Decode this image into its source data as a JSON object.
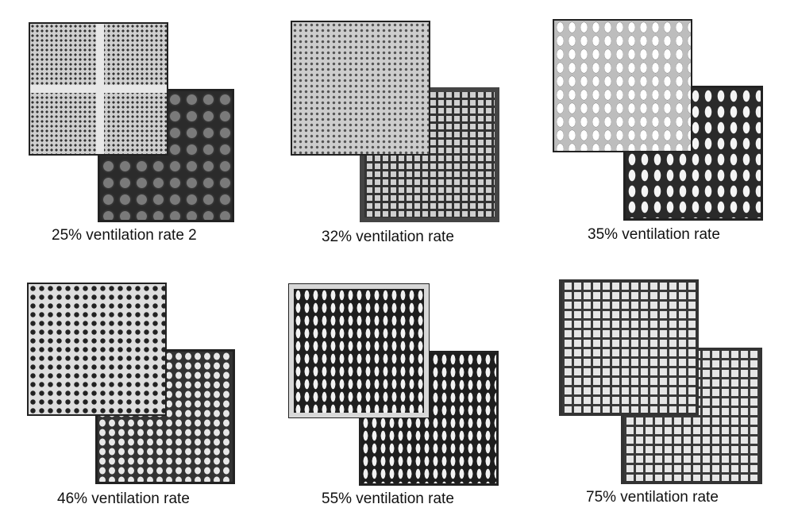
{
  "panels": [
    {
      "caption": "25% ventilation rate 2"
    },
    {
      "caption": "32% ventilation rate"
    },
    {
      "caption": "35% ventilation rate"
    },
    {
      "caption": "46% ventilation rate"
    },
    {
      "caption": "55% ventilation rate"
    },
    {
      "caption": "75% ventilation rate"
    }
  ],
  "colors": {
    "background": "#ffffff",
    "text": "#111111",
    "tile_light": "#cfcfcf",
    "tile_dark": "#2f2f2f"
  }
}
